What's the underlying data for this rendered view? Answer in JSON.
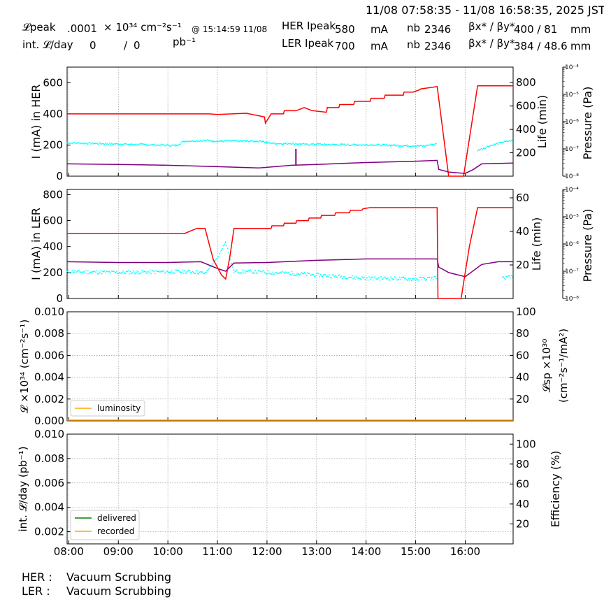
{
  "header": {
    "time_range": "11/08 07:58:35 - 11/08 16:58:35, 2025 JST",
    "lpeak_label": "𝓛peak",
    "lpeak_value": ".0001",
    "lpeak_unit": "× 10³⁴ cm⁻²s⁻¹",
    "lpeak_time": "@ 15:14:59 11/08",
    "int_label": "int. 𝓛/day",
    "int_value1": "0",
    "int_sep": "/",
    "int_value2": "0",
    "int_unit": "pb⁻¹",
    "her_label": "HER Ipeak",
    "her_value": "580",
    "her_unit": "mA",
    "ler_label": "LER Ipeak",
    "ler_value": "700",
    "ler_unit": "mA",
    "nb_label": "nb",
    "her_nb": "2346",
    "ler_nb": "2346",
    "beta_label": "βx* / βy*",
    "her_beta": "400  / 81",
    "ler_beta": "384  / 48.6",
    "beta_unit": "mm"
  },
  "footer": {
    "her_label": "HER :",
    "her_status": "Vacuum Scrubbing",
    "ler_label": "LER :",
    "ler_status": "Vacuum Scrubbing"
  },
  "colors": {
    "current": "#ff0000",
    "life": "#00ffff",
    "pressure": "#800080",
    "luminosity": "#ffa500",
    "delivered": "#008000",
    "recorded": "#ffa500"
  },
  "chart_data": [
    {
      "type": "line",
      "name": "her-panel",
      "ylabel": "I (mA) in HER",
      "y2label": "Life (min)",
      "y3label": "Pressure (Pa)",
      "xlim": [
        "08:00",
        "16:58"
      ],
      "ylim": [
        0,
        700
      ],
      "y2lim": [
        0,
        933
      ],
      "y3lim_log10": [
        -8,
        -4
      ],
      "yticks": [
        0,
        200,
        400,
        600
      ],
      "y2ticks": [
        200,
        400,
        600,
        800
      ],
      "y3ticks": [
        "10⁻⁸",
        "10⁻⁷",
        "10⁻⁶",
        "10⁻⁵",
        "10⁻⁴"
      ],
      "series": [
        {
          "role": "current",
          "x": [
            "07:58",
            "10:50",
            "11:00",
            "11:35",
            "11:57",
            "11:58",
            "12:05",
            "12:06",
            "12:20",
            "12:21",
            "12:35",
            "12:45",
            "12:55",
            "12:56",
            "13:12",
            "13:13",
            "13:27",
            "13:28",
            "13:45",
            "13:46",
            "14:05",
            "14:06",
            "14:22",
            "14:23",
            "14:45",
            "14:46",
            "14:57",
            "15:05",
            "15:06",
            "15:26",
            "15:26",
            "15:40",
            "15:58",
            "16:15",
            "16:58"
          ],
          "y": [
            400,
            400,
            396,
            404,
            380,
            340,
            400,
            400,
            400,
            420,
            420,
            440,
            420,
            420,
            410,
            440,
            440,
            460,
            460,
            480,
            480,
            500,
            500,
            520,
            520,
            540,
            540,
            555,
            560,
            575,
            578,
            0,
            0,
            580,
            580
          ]
        },
        {
          "role": "life",
          "x": [
            "07:58",
            "08:30",
            "09:00",
            "09:30",
            "10:10",
            "10:20",
            "10:50",
            "10:55",
            "11:00",
            "11:05",
            "11:10",
            "11:15",
            "11:20",
            "11:25",
            "11:30",
            "11:35",
            "11:45",
            "11:55",
            "12:00",
            "12:10",
            "12:20",
            "12:30",
            "12:40",
            "12:50",
            "13:00",
            "13:10",
            "13:20",
            "13:30",
            "13:40",
            "13:50",
            "14:00",
            "14:10",
            "14:20",
            "14:30",
            "14:40",
            "14:50",
            "15:00",
            "15:10",
            "15:20",
            "15:26",
            "16:15",
            "16:30",
            "16:45",
            "16:58"
          ],
          "y": [
            285,
            280,
            275,
            270,
            262,
            300,
            305,
            300,
            300,
            300,
            300,
            300,
            300,
            300,
            300,
            300,
            300,
            300,
            285,
            280,
            278,
            280,
            275,
            270,
            275,
            270,
            270,
            270,
            268,
            268,
            268,
            268,
            266,
            265,
            262,
            260,
            260,
            258,
            272,
            275,
            220,
            260,
            290,
            305
          ]
        },
        {
          "role": "pressure_log10",
          "x": [
            "07:58",
            "09:00",
            "10:00",
            "11:00",
            "11:50",
            "12:30",
            "13:00",
            "14:00",
            "15:00",
            "15:26",
            "15:28",
            "15:40",
            "16:00",
            "16:10",
            "16:20",
            "16:58"
          ],
          "y": [
            -7.55,
            -7.57,
            -7.6,
            -7.65,
            -7.7,
            -7.6,
            -7.57,
            -7.5,
            -7.45,
            -7.42,
            -7.75,
            -7.85,
            -7.9,
            -7.75,
            -7.55,
            -7.52
          ]
        },
        {
          "role": "pressure_spike_log10",
          "x": [
            "12:35",
            "12:35"
          ],
          "y": [
            -7.6,
            -7.0
          ]
        }
      ]
    },
    {
      "type": "line",
      "name": "ler-panel",
      "ylabel": "I (mA) in LER",
      "y2label": "Life (min)",
      "y3label": "Pressure (Pa)",
      "xlim": [
        "08:00",
        "16:58"
      ],
      "ylim": [
        0,
        840
      ],
      "y2lim": [
        0,
        65
      ],
      "y3lim_log10": [
        -8,
        -4
      ],
      "yticks": [
        0,
        200,
        400,
        600,
        800
      ],
      "y2ticks": [
        20,
        40,
        60
      ],
      "y3ticks": [
        "10⁻⁸",
        "10⁻⁷",
        "10⁻⁶",
        "10⁻⁵",
        "10⁻⁴"
      ],
      "series": [
        {
          "role": "current",
          "x": [
            "07:58",
            "10:15",
            "10:20",
            "10:35",
            "10:45",
            "10:55",
            "11:05",
            "11:10",
            "11:15",
            "11:20",
            "11:55",
            "12:05",
            "12:06",
            "12:20",
            "12:21",
            "12:35",
            "12:36",
            "12:50",
            "12:51",
            "13:05",
            "13:06",
            "13:22",
            "13:23",
            "13:40",
            "13:41",
            "13:55",
            "13:56",
            "14:00",
            "14:05",
            "15:26",
            "15:27",
            "15:45",
            "15:55",
            "16:05",
            "16:15",
            "16:58"
          ],
          "y": [
            500,
            500,
            500,
            540,
            540,
            300,
            180,
            150,
            320,
            540,
            540,
            540,
            560,
            560,
            580,
            580,
            600,
            600,
            620,
            620,
            640,
            640,
            660,
            660,
            680,
            680,
            690,
            695,
            700,
            700,
            0,
            0,
            0,
            400,
            700,
            700
          ]
        },
        {
          "role": "life",
          "x": [
            "07:58",
            "09:00",
            "10:00",
            "10:30",
            "10:45",
            "11:00",
            "11:10",
            "11:20",
            "11:35",
            "12:00",
            "12:30",
            "13:00",
            "13:30",
            "14:00",
            "14:30",
            "15:00",
            "15:20",
            "15:26",
            "16:45",
            "16:58"
          ],
          "y": [
            16,
            15.5,
            16,
            16,
            15,
            24,
            34,
            16,
            16,
            15.5,
            15,
            14,
            13,
            12,
            12,
            11.5,
            12,
            13,
            12,
            13
          ]
        },
        {
          "role": "pressure_log10",
          "x": [
            "07:58",
            "09:00",
            "10:00",
            "10:40",
            "11:00",
            "11:10",
            "11:20",
            "12:00",
            "13:00",
            "14:00",
            "15:00",
            "15:26",
            "15:28",
            "15:40",
            "16:00",
            "16:20",
            "16:40",
            "16:58"
          ],
          "y": [
            -6.65,
            -6.68,
            -6.68,
            -6.65,
            -6.9,
            -7.0,
            -6.7,
            -6.68,
            -6.6,
            -6.55,
            -6.55,
            -6.55,
            -6.85,
            -7.05,
            -7.2,
            -6.75,
            -6.65,
            -6.65
          ]
        }
      ]
    },
    {
      "type": "line",
      "name": "luminosity-panel",
      "ylabel": "𝓛 ×10³⁴ (cm⁻²s⁻¹)",
      "y2label_line1": "𝓛sp ×10³⁰",
      "y2label_line2": "(cm⁻²s⁻¹/mA²)",
      "xlim": [
        "08:00",
        "16:58"
      ],
      "ylim": [
        0,
        0.01
      ],
      "y2lim": [
        0,
        100
      ],
      "yticks": [
        "0.000",
        "0.002",
        "0.004",
        "0.006",
        "0.008",
        "0.010"
      ],
      "y2ticks": [
        20,
        40,
        60,
        80,
        100
      ],
      "legend": "lower-left",
      "series": [
        {
          "name": "luminosity",
          "x": [
            "07:58",
            "16:58"
          ],
          "y": [
            0,
            0
          ]
        }
      ]
    },
    {
      "type": "line",
      "name": "integrated-panel",
      "ylabel": "int. 𝓛/day (pb⁻¹)",
      "y2label": "Efficiency (%)",
      "xlim": [
        "08:00",
        "16:58"
      ],
      "ylim": [
        0.001,
        0.01
      ],
      "y2lim": [
        0,
        110
      ],
      "yticks": [
        "0.002",
        "0.004",
        "0.006",
        "0.008",
        "0.010"
      ],
      "y2ticks": [
        20,
        40,
        60,
        80,
        100
      ],
      "xticks": [
        "08:00",
        "09:00",
        "10:00",
        "11:00",
        "12:00",
        "13:00",
        "14:00",
        "15:00",
        "16:00"
      ],
      "legend": "lower-left",
      "series": [
        {
          "name": "delivered",
          "x": [],
          "y": []
        },
        {
          "name": "recorded",
          "x": [],
          "y": []
        }
      ]
    }
  ]
}
